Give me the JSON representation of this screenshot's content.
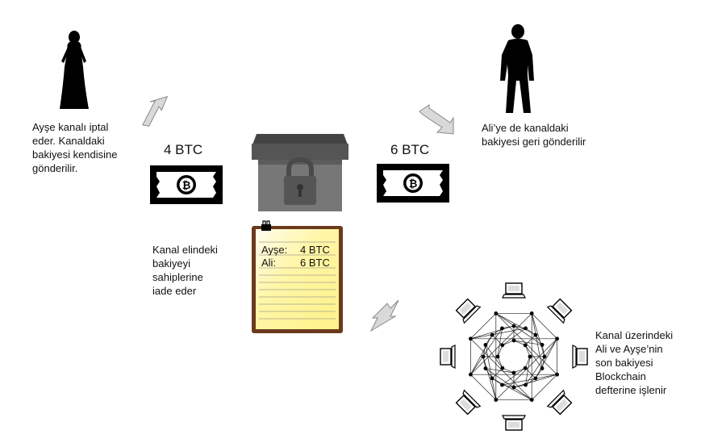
{
  "ayse_text": [
    "Ayşe kanalı iptal",
    "eder. Kanaldaki",
    "bakiyesi kendisine",
    "gönderilir."
  ],
  "ali_text": [
    "Ali’ye de kanaldaki",
    "bakiyesi geri gönderilir"
  ],
  "left_amount": "4 BTC",
  "right_amount": "6 BTC",
  "channel_text": [
    "Kanal elindeki",
    "bakiyeyi",
    "sahiplerine",
    "iade eder"
  ],
  "ledger": [
    {
      "name": "Ayşe:",
      "amount": "4 BTC"
    },
    {
      "name": "Ali:",
      "amount": "6 BTC"
    }
  ],
  "blockchain_text": [
    "Kanal üzerindeki",
    "Ali ve Ayşe’nin",
    "son bakiyesi",
    "Blockchain",
    "defterine işlenir"
  ],
  "bitcoin_symbol": "₿",
  "colors": {
    "paper": "#fff9b0",
    "board": "#6b3a1e",
    "box": "#666666",
    "arrow": "#d9d9d9"
  }
}
